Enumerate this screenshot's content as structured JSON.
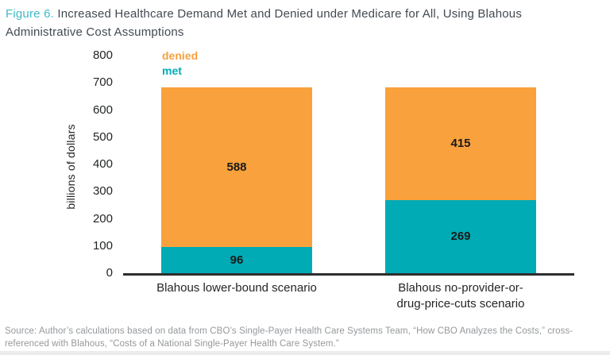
{
  "header": {
    "prefix": "Figure 6.",
    "title_line1": "Increased Healthcare Demand Met and Denied under Medicare for All, Using Blahous",
    "title_line2": "Administrative Cost Assumptions"
  },
  "colors": {
    "denied_orange": "#F9A13C",
    "met_teal": "#00ABB5",
    "figure_label_teal": "#3FB9C6",
    "axis_line": "#2E2E2E"
  },
  "chart_data": {
    "type": "bar",
    "stacked": true,
    "title": "Increased Healthcare Demand Met and Denied under Medicare for All, Using Blahous Administrative Cost Assumptions",
    "categories": [
      "Blahous lower-bound scenario",
      "Blahous no-provider-or-\ndrug-price-cuts scenario"
    ],
    "series": [
      {
        "name": "met",
        "color": "#00ABB5",
        "values": [
          96,
          269
        ]
      },
      {
        "name": "denied",
        "color": "#F9A13C",
        "values": [
          588,
          415
        ]
      }
    ],
    "stack_order_bottom_to_top": [
      "met",
      "denied"
    ],
    "xlabel": "",
    "ylabel": "billions of dollars",
    "ylim": [
      0,
      800
    ],
    "yticks": [
      0,
      100,
      200,
      300,
      400,
      500,
      600,
      700,
      800
    ],
    "grid": false,
    "legend_position": "top-left",
    "legend_order": [
      "denied",
      "met"
    ]
  },
  "source": {
    "line1": "Source: Author’s calculations based on data from CBO’s Single-Payer Health Care Systems Team, “How CBO Analyzes the Costs,” cross-",
    "line2": "referenced with Blahous, “Costs of a National Single-Payer Health Care System.”"
  }
}
